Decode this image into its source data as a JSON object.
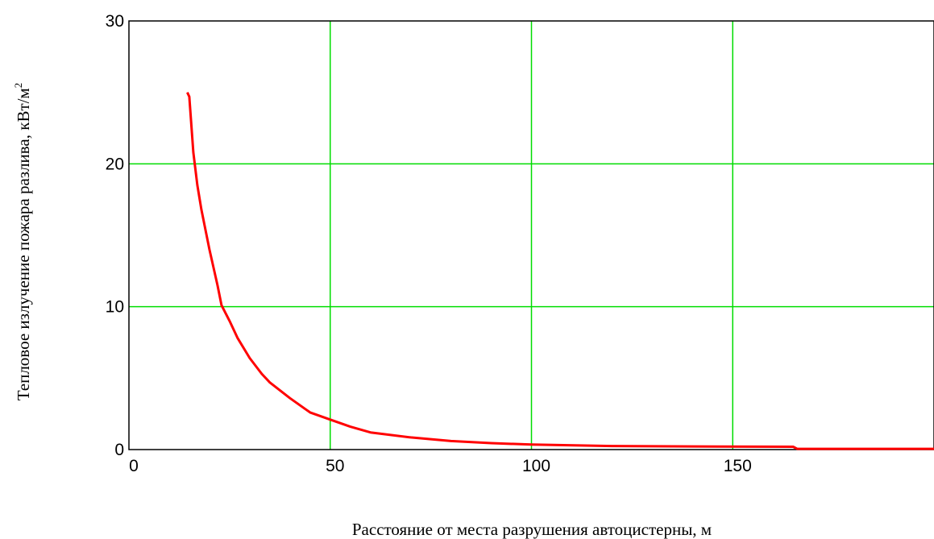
{
  "chart_data": {
    "type": "line",
    "title": "",
    "xlabel": "Расстояние от места разрушения автоцистерны, м",
    "ylabel": "Тепловое излучение пожара разлива, кВт/м",
    "ylabel_superscript": "2",
    "xlim": [
      0,
      200
    ],
    "ylim": [
      0,
      30
    ],
    "xticks": [
      0,
      50,
      100,
      150
    ],
    "yticks": [
      0,
      10,
      20,
      30
    ],
    "grid": true,
    "legend": "none",
    "series": [
      {
        "x": [
          14.5,
          15,
          16,
          17,
          18,
          20,
          22,
          23,
          25,
          27,
          30,
          33,
          35,
          40,
          45,
          50,
          55,
          60,
          70,
          80,
          90,
          100,
          120,
          140,
          165,
          166,
          200
        ],
        "y": [
          25,
          24.7,
          20.8,
          18.5,
          16.8,
          14.0,
          11.5,
          10.1,
          9.0,
          7.8,
          6.4,
          5.3,
          4.7,
          3.6,
          2.6,
          2.1,
          1.6,
          1.2,
          0.85,
          0.6,
          0.45,
          0.35,
          0.25,
          0.22,
          0.2,
          0.05,
          0.05
        ]
      }
    ]
  },
  "colors": {
    "grid": "#00dd00",
    "curve": "#ff0000",
    "axis": "#000000"
  }
}
